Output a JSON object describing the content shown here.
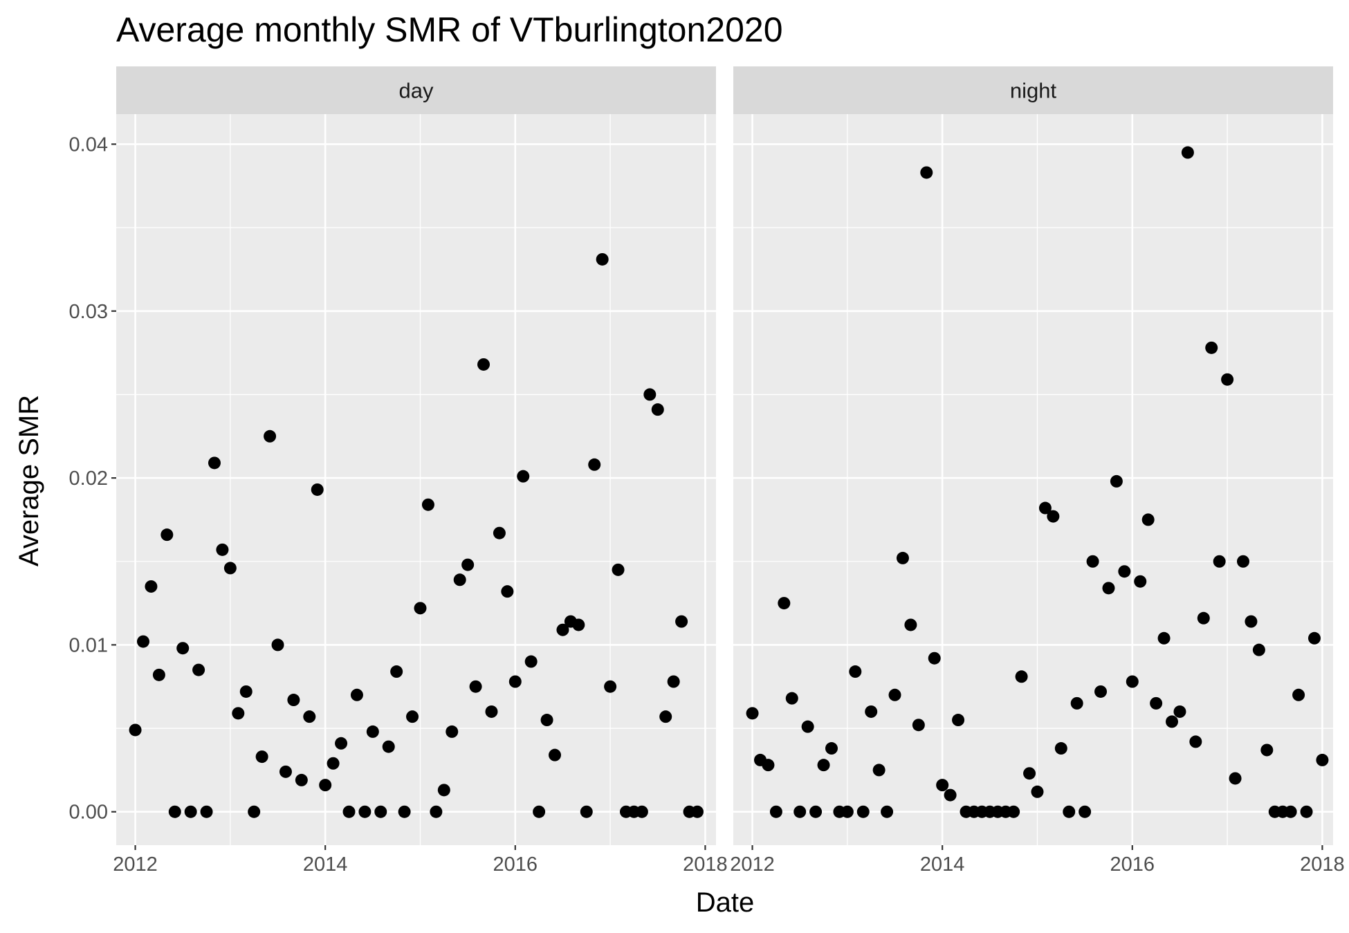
{
  "chart_data": {
    "type": "scatter",
    "title": "Average monthly SMR of VTburlington2020",
    "xlabel": "Date",
    "ylabel": "Average SMR",
    "ylim": [
      -0.002,
      0.0418
    ],
    "xlim": [
      "2011-10-19",
      "2018-02-12"
    ],
    "x_ticks": [
      "2012",
      "2014",
      "2016",
      "2018"
    ],
    "y_ticks": [
      "0.00",
      "0.01",
      "0.02",
      "0.03",
      "0.04"
    ],
    "grid": true,
    "legend": "none",
    "point_color": "#000000",
    "panels": [
      {
        "name": "day",
        "points": [
          [
            "2012-01",
            0.0049
          ],
          [
            "2012-02",
            0.0102
          ],
          [
            "2012-03",
            0.0135
          ],
          [
            "2012-04",
            0.0082
          ],
          [
            "2012-05",
            0.0166
          ],
          [
            "2012-06",
            0.0
          ],
          [
            "2012-07",
            0.0098
          ],
          [
            "2012-08",
            0.0
          ],
          [
            "2012-09",
            0.0085
          ],
          [
            "2012-10",
            0.0
          ],
          [
            "2012-11",
            0.0209
          ],
          [
            "2012-12",
            0.0157
          ],
          [
            "2013-01",
            0.0146
          ],
          [
            "2013-02",
            0.0059
          ],
          [
            "2013-03",
            0.0072
          ],
          [
            "2013-04",
            0.0
          ],
          [
            "2013-05",
            0.0033
          ],
          [
            "2013-06",
            0.0225
          ],
          [
            "2013-07",
            0.01
          ],
          [
            "2013-08",
            0.0024
          ],
          [
            "2013-09",
            0.0067
          ],
          [
            "2013-10",
            0.0019
          ],
          [
            "2013-11",
            0.0057
          ],
          [
            "2013-12",
            0.0193
          ],
          [
            "2014-01",
            0.0016
          ],
          [
            "2014-02",
            0.0029
          ],
          [
            "2014-03",
            0.0041
          ],
          [
            "2014-04",
            0.0
          ],
          [
            "2014-05",
            0.007
          ],
          [
            "2014-06",
            0.0
          ],
          [
            "2014-07",
            0.0048
          ],
          [
            "2014-08",
            0.0
          ],
          [
            "2014-09",
            0.0039
          ],
          [
            "2014-10",
            0.0084
          ],
          [
            "2014-11",
            0.0
          ],
          [
            "2014-12",
            0.0057
          ],
          [
            "2015-01",
            0.0122
          ],
          [
            "2015-02",
            0.0184
          ],
          [
            "2015-03",
            0.0
          ],
          [
            "2015-04",
            0.0013
          ],
          [
            "2015-05",
            0.0048
          ],
          [
            "2015-06",
            0.0139
          ],
          [
            "2015-07",
            0.0148
          ],
          [
            "2015-08",
            0.0075
          ],
          [
            "2015-09",
            0.0268
          ],
          [
            "2015-10",
            0.006
          ],
          [
            "2015-11",
            0.0167
          ],
          [
            "2015-12",
            0.0132
          ],
          [
            "2016-01",
            0.0078
          ],
          [
            "2016-02",
            0.0201
          ],
          [
            "2016-03",
            0.009
          ],
          [
            "2016-04",
            0.0
          ],
          [
            "2016-05",
            0.0055
          ],
          [
            "2016-06",
            0.0034
          ],
          [
            "2016-07",
            0.0109
          ],
          [
            "2016-08",
            0.0114
          ],
          [
            "2016-09",
            0.0112
          ],
          [
            "2016-10",
            0.0
          ],
          [
            "2016-11",
            0.0208
          ],
          [
            "2016-12",
            0.0331
          ],
          [
            "2017-01",
            0.0075
          ],
          [
            "2017-02",
            0.0145
          ],
          [
            "2017-03",
            0.0
          ],
          [
            "2017-04",
            0.0
          ],
          [
            "2017-05",
            0.0
          ],
          [
            "2017-06",
            0.025
          ],
          [
            "2017-07",
            0.0241
          ],
          [
            "2017-08",
            0.0057
          ],
          [
            "2017-09",
            0.0078
          ],
          [
            "2017-10",
            0.0114
          ],
          [
            "2017-11",
            0.0
          ],
          [
            "2017-12",
            0.0
          ]
        ]
      },
      {
        "name": "night",
        "points": [
          [
            "2012-01",
            0.0059
          ],
          [
            "2012-02",
            0.0031
          ],
          [
            "2012-03",
            0.0028
          ],
          [
            "2012-04",
            0.0
          ],
          [
            "2012-05",
            0.0125
          ],
          [
            "2012-06",
            0.0068
          ],
          [
            "2012-07",
            0.0
          ],
          [
            "2012-08",
            0.0051
          ],
          [
            "2012-09",
            0.0
          ],
          [
            "2012-10",
            0.0028
          ],
          [
            "2012-11",
            0.0038
          ],
          [
            "2012-12",
            0.0
          ],
          [
            "2013-01",
            0.0
          ],
          [
            "2013-02",
            0.0084
          ],
          [
            "2013-03",
            0.0
          ],
          [
            "2013-04",
            0.006
          ],
          [
            "2013-05",
            0.0025
          ],
          [
            "2013-06",
            0.0
          ],
          [
            "2013-07",
            0.007
          ],
          [
            "2013-08",
            0.0152
          ],
          [
            "2013-09",
            0.0112
          ],
          [
            "2013-10",
            0.0052
          ],
          [
            "2013-11",
            0.0383
          ],
          [
            "2013-12",
            0.0092
          ],
          [
            "2014-01",
            0.0016
          ],
          [
            "2014-02",
            0.001
          ],
          [
            "2014-03",
            0.0055
          ],
          [
            "2014-04",
            0.0
          ],
          [
            "2014-05",
            0.0
          ],
          [
            "2014-06",
            0.0
          ],
          [
            "2014-07",
            0.0
          ],
          [
            "2014-08",
            0.0
          ],
          [
            "2014-09",
            0.0
          ],
          [
            "2014-10",
            0.0
          ],
          [
            "2014-11",
            0.0081
          ],
          [
            "2014-12",
            0.0023
          ],
          [
            "2015-01",
            0.0012
          ],
          [
            "2015-02",
            0.0182
          ],
          [
            "2015-03",
            0.0177
          ],
          [
            "2015-04",
            0.0038
          ],
          [
            "2015-05",
            0.0
          ],
          [
            "2015-06",
            0.0065
          ],
          [
            "2015-07",
            0.0
          ],
          [
            "2015-08",
            0.015
          ],
          [
            "2015-09",
            0.0072
          ],
          [
            "2015-10",
            0.0134
          ],
          [
            "2015-11",
            0.0198
          ],
          [
            "2015-12",
            0.0144
          ],
          [
            "2016-01",
            0.0078
          ],
          [
            "2016-02",
            0.0138
          ],
          [
            "2016-03",
            0.0175
          ],
          [
            "2016-04",
            0.0065
          ],
          [
            "2016-05",
            0.0104
          ],
          [
            "2016-06",
            0.0054
          ],
          [
            "2016-07",
            0.006
          ],
          [
            "2016-08",
            0.0395
          ],
          [
            "2016-09",
            0.0042
          ],
          [
            "2016-10",
            0.0116
          ],
          [
            "2016-11",
            0.0278
          ],
          [
            "2016-12",
            0.015
          ],
          [
            "2017-01",
            0.0259
          ],
          [
            "2017-02",
            0.002
          ],
          [
            "2017-03",
            0.015
          ],
          [
            "2017-04",
            0.0114
          ],
          [
            "2017-05",
            0.0097
          ],
          [
            "2017-06",
            0.0037
          ],
          [
            "2017-07",
            0.0
          ],
          [
            "2017-08",
            0.0
          ],
          [
            "2017-09",
            0.0
          ],
          [
            "2017-10",
            0.007
          ],
          [
            "2017-11",
            0.0
          ],
          [
            "2017-12",
            0.0104
          ],
          [
            "2018-01",
            0.0031
          ]
        ]
      }
    ]
  }
}
